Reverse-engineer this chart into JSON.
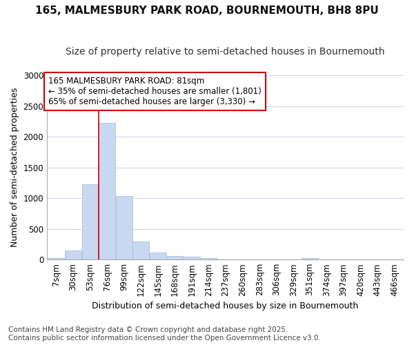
{
  "title_line1": "165, MALMESBURY PARK ROAD, BOURNEMOUTH, BH8 8PU",
  "title_line2": "Size of property relative to semi-detached houses in Bournemouth",
  "xlabel": "Distribution of semi-detached houses by size in Bournemouth",
  "ylabel": "Number of semi-detached properties",
  "footnote_line1": "Contains HM Land Registry data © Crown copyright and database right 2025.",
  "footnote_line2": "Contains public sector information licensed under the Open Government Licence v3.0.",
  "bin_labels": [
    "7sqm",
    "30sqm",
    "53sqm",
    "76sqm",
    "99sqm",
    "122sqm",
    "145sqm",
    "168sqm",
    "191sqm",
    "214sqm",
    "237sqm",
    "260sqm",
    "283sqm",
    "306sqm",
    "329sqm",
    "351sqm",
    "374sqm",
    "397sqm",
    "420sqm",
    "443sqm",
    "466sqm"
  ],
  "bin_left_edges": [
    7,
    30,
    53,
    76,
    99,
    122,
    145,
    168,
    191,
    214,
    237,
    260,
    283,
    306,
    329,
    351,
    374,
    397,
    420,
    443,
    466
  ],
  "bin_width": 23,
  "bar_heights": [
    20,
    150,
    1230,
    2230,
    1040,
    290,
    110,
    60,
    45,
    25,
    0,
    0,
    0,
    0,
    0,
    25,
    0,
    0,
    0,
    0,
    0
  ],
  "bar_color": "#c8d8f0",
  "bar_edge_color": "#a0b8e0",
  "background_color": "#ffffff",
  "plot_bg_color": "#ffffff",
  "grid_color": "#d0d8e8",
  "red_line_x": 76,
  "property_label": "165 MALMESBURY PARK ROAD: 81sqm",
  "smaller_text": "← 35% of semi-detached houses are smaller (1,801)",
  "larger_text": "65% of semi-detached houses are larger (3,330) →",
  "annotation_box_color": "#ffffff",
  "annotation_box_edge": "#cc0000",
  "red_line_color": "#cc0000",
  "ylim": [
    0,
    3000
  ],
  "yticks": [
    0,
    500,
    1000,
    1500,
    2000,
    2500,
    3000
  ],
  "title_fontsize": 11,
  "subtitle_fontsize": 10,
  "axis_label_fontsize": 9,
  "tick_fontsize": 8.5,
  "annotation_fontsize": 8.5,
  "footnote_fontsize": 7.5
}
